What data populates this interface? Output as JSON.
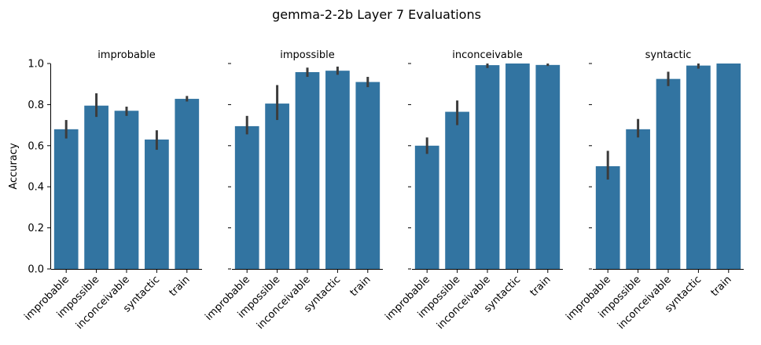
{
  "chart_data": {
    "type": "bar",
    "title": "gemma-2-2b Layer 7 Evaluations",
    "ylabel": "Accuracy",
    "xlabel": "",
    "ylim": [
      0,
      1.0
    ],
    "yticks": [
      "0.0",
      "0.2",
      "0.4",
      "0.6",
      "0.8",
      "1.0"
    ],
    "categories": [
      "improbable",
      "impossible",
      "inconceivable",
      "syntactic",
      "train"
    ],
    "bar_color": "#3274a1",
    "errorbar_color": "#3c3c3c",
    "panels": [
      {
        "title": "improbable",
        "values": [
          0.68,
          0.795,
          0.77,
          0.63,
          0.828
        ],
        "err_low": [
          0.635,
          0.74,
          0.745,
          0.58,
          0.815
        ],
        "err_high": [
          0.725,
          0.855,
          0.79,
          0.675,
          0.842
        ]
      },
      {
        "title": "impossible",
        "values": [
          0.695,
          0.805,
          0.958,
          0.965,
          0.91
        ],
        "err_low": [
          0.655,
          0.725,
          0.935,
          0.945,
          0.885
        ],
        "err_high": [
          0.745,
          0.895,
          0.98,
          0.985,
          0.935
        ]
      },
      {
        "title": "inconceivable",
        "values": [
          0.6,
          0.765,
          0.992,
          1.0,
          0.993
        ],
        "err_low": [
          0.56,
          0.7,
          0.978,
          1.0,
          0.988
        ],
        "err_high": [
          0.64,
          0.82,
          1.0,
          1.0,
          1.0
        ]
      },
      {
        "title": "syntactic",
        "values": [
          0.5,
          0.68,
          0.925,
          0.99,
          1.0
        ],
        "err_low": [
          0.435,
          0.64,
          0.89,
          0.975,
          1.0
        ],
        "err_high": [
          0.575,
          0.73,
          0.96,
          1.0,
          1.0
        ]
      }
    ]
  }
}
